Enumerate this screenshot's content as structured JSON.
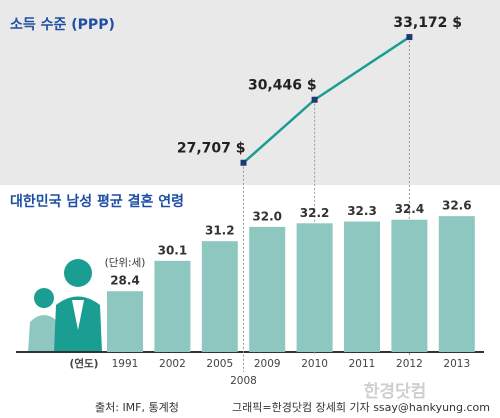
{
  "charts": [
    {
      "type": "line",
      "title": "소득 수준 (PPP)",
      "color": "#1a9e92",
      "x": [
        2008,
        2010,
        2012
      ],
      "values": [
        27707,
        30446,
        33172
      ],
      "value_labels": [
        "27,707 $",
        "30,446 $",
        "33,172 $"
      ],
      "ylim": [
        26000,
        34000
      ]
    },
    {
      "type": "bar",
      "title": "대한민국 남성 평균 결혼 연령",
      "color": "#8ec7bf",
      "unit_note": "(단위:세)",
      "x_label": "(연도)",
      "categories": [
        "1991",
        "2002",
        "2005",
        "2009",
        "2010",
        "2011",
        "2012",
        "2013"
      ],
      "values": [
        28.4,
        30.1,
        31.2,
        32.0,
        32.2,
        32.3,
        32.4,
        32.6
      ],
      "value_labels": [
        "28.4",
        "30.1",
        "31.2",
        "32.0",
        "32.2",
        "32.3",
        "32.4",
        "32.6"
      ],
      "ylim": [
        25,
        33
      ]
    }
  ],
  "source": "출처: IMF, 통계청",
  "credit": "그래픽=한경닷컴 장세희 기자 ssay@hankyung.com",
  "watermark": "한경닷컴"
}
